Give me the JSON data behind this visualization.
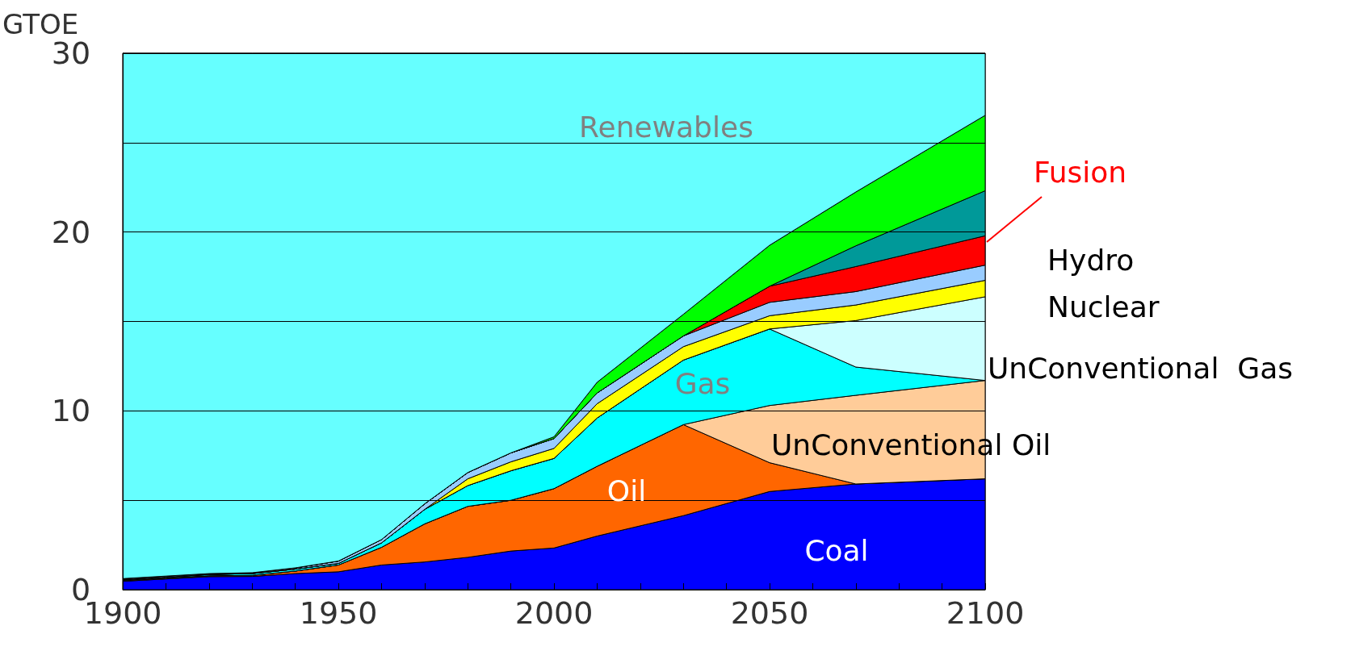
{
  "chart_data": {
    "type": "area",
    "stacked": true,
    "ylabel": "GTOE",
    "x": [
      1900,
      1910,
      1920,
      1930,
      1940,
      1950,
      1960,
      1970,
      1980,
      1990,
      2000,
      2010,
      2030,
      2050,
      2070,
      2100
    ],
    "series": [
      {
        "name": "Coal",
        "color": "#0000ff",
        "values": [
          0.47,
          0.6,
          0.73,
          0.74,
          0.9,
          1.0,
          1.38,
          1.55,
          1.81,
          2.16,
          2.33,
          3.0,
          4.14,
          5.49,
          5.91,
          6.2
        ]
      },
      {
        "name": "Oil",
        "color": "#ff6600",
        "values": [
          0.05,
          0.05,
          0.05,
          0.06,
          0.14,
          0.38,
          0.99,
          2.13,
          2.85,
          2.84,
          3.32,
          3.9,
          5.09,
          1.61,
          0,
          0
        ]
      },
      {
        "name": "UnConventional Oil",
        "color": "#ffcc99",
        "values": [
          0,
          0,
          0,
          0,
          0,
          0,
          0,
          0,
          0,
          0,
          0,
          0,
          0,
          3.2,
          4.96,
          5.5
        ]
      },
      {
        "name": "Gas",
        "color": "#00ffff",
        "values": [
          0.04,
          0.05,
          0.07,
          0.1,
          0.11,
          0.09,
          0.25,
          0.81,
          1.16,
          1.65,
          1.69,
          2.7,
          3.61,
          4.28,
          1.58,
          0
        ]
      },
      {
        "name": "UnConventional  Gas",
        "color": "#ccffff",
        "values": [
          0,
          0,
          0,
          0,
          0,
          0,
          0,
          0,
          0,
          0,
          0,
          0,
          0,
          0,
          2.6,
          4.68
        ]
      },
      {
        "name": "Nuclear",
        "color": "#ffff00",
        "values": [
          0,
          0,
          0,
          0,
          0,
          0,
          0,
          0,
          0.38,
          0.5,
          0.56,
          0.8,
          0.75,
          0.74,
          0.87,
          0.92
        ]
      },
      {
        "name": "Hydro",
        "color": "#99ccff",
        "values": [
          0.06,
          0.06,
          0.05,
          0.05,
          0.07,
          0.13,
          0.18,
          0.31,
          0.35,
          0.5,
          0.55,
          0.6,
          0.6,
          0.75,
          0.75,
          0.85
        ]
      },
      {
        "name": "Fusion",
        "color": "#ff0000",
        "values": [
          0,
          0,
          0,
          0,
          0,
          0,
          0,
          0,
          0,
          0,
          0,
          0,
          0,
          0.9,
          1.4,
          1.64
        ]
      },
      {
        "color": "#009999",
        "values": [
          0,
          0,
          0,
          0,
          0,
          0,
          0,
          0,
          0,
          0,
          0,
          0,
          0,
          0,
          1.16,
          2.52
        ]
      },
      {
        "color": "#00ff00",
        "values": [
          0,
          0,
          0,
          0,
          0,
          0,
          0,
          0,
          0,
          0,
          0.1,
          0.6,
          1.21,
          2.29,
          3.01,
          4.22
        ]
      },
      {
        "name": "Renewables",
        "color": "#66ffff",
        "values": [
          29.38,
          29.24,
          29.1,
          29.05,
          28.78,
          28.4,
          27.2,
          25.2,
          23.45,
          22.35,
          21.45,
          18.4,
          14.6,
          10.74,
          7.76,
          3.47
        ]
      }
    ],
    "xlim": [
      1900,
      2100
    ],
    "xticks": [
      1900,
      {
        "value": 1910,
        "label": null
      },
      {
        "value": 1920,
        "label": null
      },
      {
        "value": 1930,
        "label": null
      },
      {
        "value": 1940,
        "label": null
      },
      1950,
      {
        "value": 1960,
        "label": null
      },
      {
        "value": 1970,
        "label": null
      },
      {
        "value": 1980,
        "label": null
      },
      {
        "value": 1990,
        "label": null
      },
      2000,
      {
        "value": 2010,
        "label": null
      },
      {
        "value": 2020,
        "label": null
      },
      {
        "value": 2030,
        "label": null
      },
      {
        "value": 2040,
        "label": null
      },
      2050,
      {
        "value": 2060,
        "label": null
      },
      {
        "value": 2070,
        "label": null
      },
      {
        "value": 2080,
        "label": null
      },
      {
        "value": 2090,
        "label": null
      },
      2100
    ],
    "ylim": [
      0,
      30
    ],
    "yticks": [
      0,
      {
        "value": 5,
        "label": null
      },
      10,
      {
        "value": 15,
        "label": null
      },
      20,
      {
        "value": 25,
        "label": null
      },
      30
    ],
    "grid": "y",
    "legend": false
  }
}
